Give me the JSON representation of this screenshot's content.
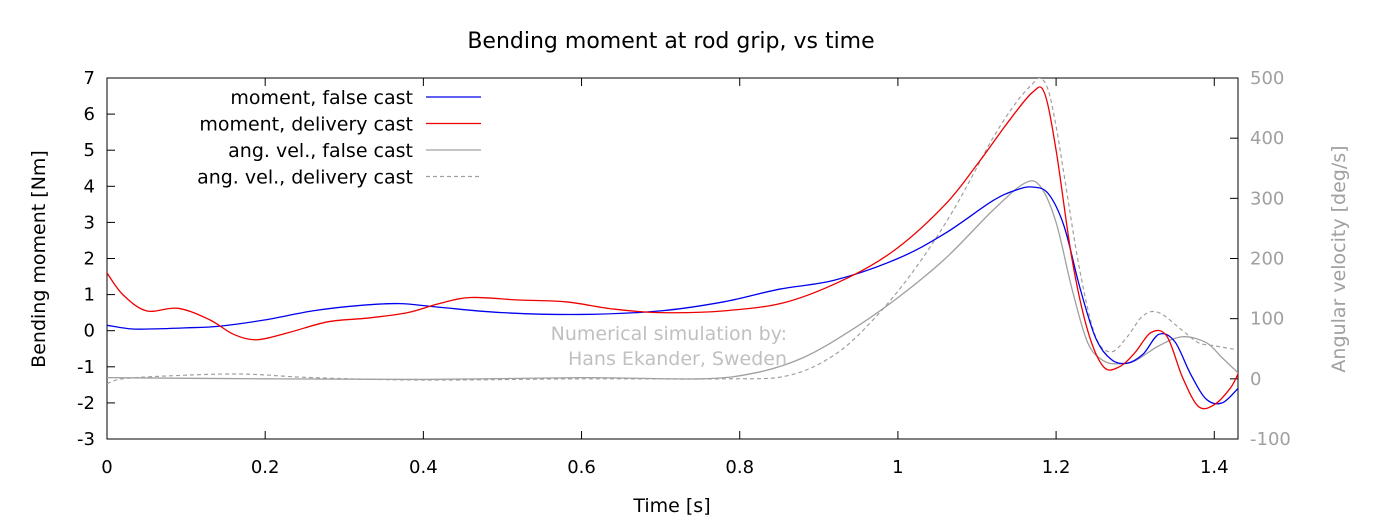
{
  "chart_data": {
    "type": "line",
    "title": "Bending moment at rod grip, vs time",
    "xlabel": "Time [s]",
    "ylabel": "Bending moment [Nm]",
    "y2label": "Angular velocity [deg/s]",
    "xlim": [
      0,
      1.43
    ],
    "ylim": [
      -3,
      7
    ],
    "y2lim": [
      -100,
      500
    ],
    "xticks": [
      0,
      0.2,
      0.4,
      0.6,
      0.8,
      1,
      1.2,
      1.4
    ],
    "xtick_labels": [
      "0",
      "0.2",
      "0.4",
      "0.6",
      "0.8",
      "1",
      "1.2",
      "1.4"
    ],
    "yticks": [
      -3,
      -2,
      -1,
      0,
      1,
      2,
      3,
      4,
      5,
      6,
      7
    ],
    "ytick_labels": [
      "-3",
      "-2",
      "-1",
      "0",
      "1",
      "2",
      "3",
      "4",
      "5",
      "6",
      "7"
    ],
    "y2ticks": [
      -100,
      0,
      100,
      200,
      300,
      400,
      500
    ],
    "y2tick_labels": [
      "-100",
      "0",
      "100",
      "200",
      "300",
      "400",
      "500"
    ],
    "grid": false,
    "legend_position": "top-left",
    "annotation": [
      "Numerical simulation by:",
      "Hans Ekander, Sweden"
    ],
    "series": [
      {
        "name": "moment, false cast",
        "axis": "left",
        "color": "#0000ee",
        "dash": "solid",
        "x": [
          0,
          0.03,
          0.06,
          0.1,
          0.14,
          0.2,
          0.26,
          0.32,
          0.37,
          0.42,
          0.5,
          0.6,
          0.7,
          0.78,
          0.85,
          0.92,
          1.0,
          1.06,
          1.12,
          1.15,
          1.17,
          1.19,
          1.21,
          1.23,
          1.25,
          1.27,
          1.29,
          1.31,
          1.33,
          1.35,
          1.37,
          1.39,
          1.41,
          1.43
        ],
        "y": [
          0.15,
          0.05,
          0.05,
          0.08,
          0.12,
          0.3,
          0.55,
          0.7,
          0.75,
          0.65,
          0.5,
          0.45,
          0.55,
          0.8,
          1.15,
          1.4,
          2.0,
          2.7,
          3.6,
          3.9,
          3.98,
          3.8,
          2.9,
          1.2,
          -0.2,
          -0.8,
          -0.9,
          -0.65,
          -0.1,
          -0.3,
          -1.2,
          -1.9,
          -2.0,
          -1.6
        ]
      },
      {
        "name": "moment, delivery cast",
        "axis": "left",
        "color": "#ee0000",
        "dash": "solid",
        "x": [
          0,
          0.02,
          0.05,
          0.09,
          0.13,
          0.16,
          0.19,
          0.23,
          0.28,
          0.33,
          0.38,
          0.42,
          0.46,
          0.52,
          0.58,
          0.64,
          0.7,
          0.78,
          0.86,
          0.94,
          1.0,
          1.06,
          1.1,
          1.14,
          1.17,
          1.185,
          1.2,
          1.22,
          1.24,
          1.26,
          1.28,
          1.3,
          1.32,
          1.34,
          1.36,
          1.38,
          1.4,
          1.42,
          1.43
        ],
        "y": [
          1.6,
          1.0,
          0.55,
          0.62,
          0.3,
          -0.1,
          -0.25,
          -0.05,
          0.25,
          0.35,
          0.5,
          0.75,
          0.92,
          0.85,
          0.8,
          0.6,
          0.5,
          0.55,
          0.8,
          1.5,
          2.3,
          3.5,
          4.6,
          5.8,
          6.6,
          6.6,
          5.0,
          2.0,
          0.0,
          -1.0,
          -1.0,
          -0.6,
          -0.05,
          -0.15,
          -1.3,
          -2.1,
          -2.05,
          -1.6,
          -1.2
        ]
      },
      {
        "name": "ang. vel., false cast",
        "axis": "right",
        "color": "#a0a0a0",
        "dash": "solid",
        "x": [
          0,
          0.2,
          0.4,
          0.6,
          0.75,
          0.82,
          0.88,
          0.94,
          1.0,
          1.06,
          1.12,
          1.16,
          1.18,
          1.2,
          1.22,
          1.24,
          1.26,
          1.28,
          1.3,
          1.33,
          1.36,
          1.39,
          1.41,
          1.43
        ],
        "y": [
          2,
          0,
          -1,
          2,
          0,
          10,
          35,
          80,
          135,
          200,
          280,
          325,
          320,
          260,
          150,
          60,
          30,
          25,
          30,
          55,
          70,
          60,
          35,
          10
        ]
      },
      {
        "name": "ang. vel., delivery cast",
        "axis": "right",
        "color": "#a0a0a0",
        "dash": "dashed",
        "x": [
          0,
          0.02,
          0.08,
          0.17,
          0.26,
          0.4,
          0.6,
          0.78,
          0.86,
          0.92,
          0.97,
          1.02,
          1.07,
          1.12,
          1.15,
          1.17,
          1.18,
          1.19,
          1.2,
          1.21,
          1.23,
          1.25,
          1.27,
          1.29,
          1.31,
          1.33,
          1.36,
          1.38,
          1.4,
          1.43
        ],
        "y": [
          -8,
          0,
          5,
          8,
          2,
          -2,
          0,
          0,
          5,
          40,
          100,
          180,
          280,
          400,
          460,
          490,
          500,
          480,
          420,
          340,
          180,
          70,
          45,
          70,
          105,
          110,
          80,
          60,
          55,
          48
        ]
      }
    ]
  }
}
